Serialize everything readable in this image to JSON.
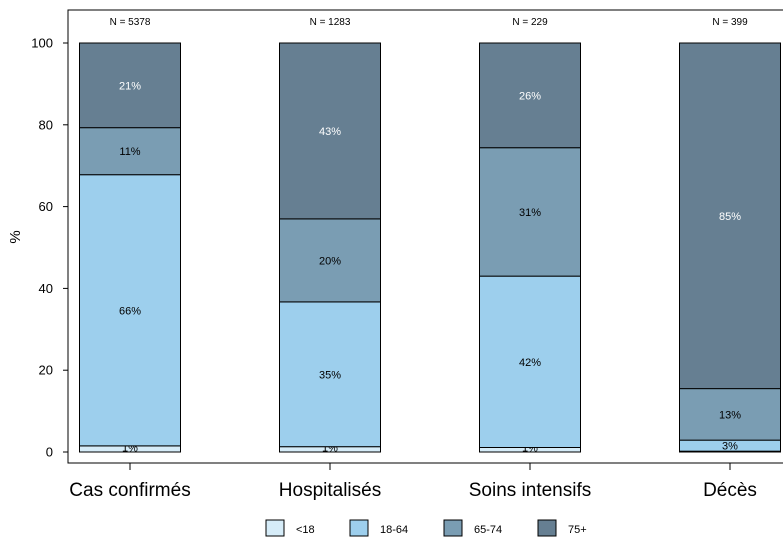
{
  "chart_data": {
    "type": "bar",
    "stacked": true,
    "ylabel": "%",
    "ylim": [
      0,
      100
    ],
    "yticks": [
      "0",
      "20",
      "40",
      "60",
      "80",
      "100"
    ],
    "categories": [
      "Cas confirmés",
      "Hospitalisés",
      "Soins intensifs",
      "Décès"
    ],
    "n_labels": [
      "N = 5378",
      "N = 1283",
      "N = 229",
      "N = 399"
    ],
    "series": [
      {
        "name": "<18",
        "color": "#d6ecf8",
        "values": [
          1.5,
          1.3,
          1.1,
          0.2
        ],
        "labels": [
          "1%",
          "1%",
          "1%",
          ""
        ]
      },
      {
        "name": "18-64",
        "color": "#9dcfed",
        "values": [
          66.3,
          35.4,
          41.9,
          2.7
        ],
        "labels": [
          "66%",
          "35%",
          "42%",
          "3%"
        ]
      },
      {
        "name": "65-74",
        "color": "#7a9db3",
        "values": [
          11.5,
          20.3,
          31.4,
          12.6
        ],
        "labels": [
          "11%",
          "20%",
          "31%",
          "13%"
        ]
      },
      {
        "name": "75+",
        "color": "#667f92",
        "values": [
          20.7,
          43.0,
          25.6,
          84.5
        ],
        "labels": [
          "21%",
          "43%",
          "26%",
          "85%"
        ]
      }
    ],
    "label_colors": [
      "#000000",
      "#000000",
      "#000000",
      "#ffffff"
    ],
    "grid": false,
    "legend_position": "bottom"
  }
}
